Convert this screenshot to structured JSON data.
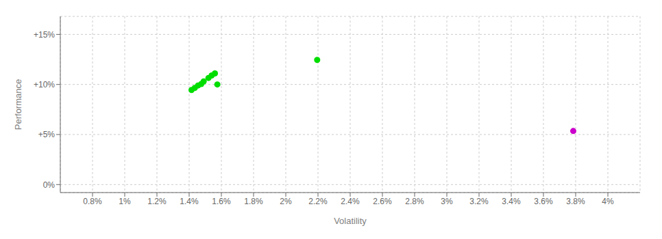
{
  "chart_data": {
    "type": "scatter",
    "xlabel": "Volatility",
    "ylabel": "Performance",
    "xlim": [
      0.006,
      0.042
    ],
    "ylim": [
      -0.008,
      0.168
    ],
    "xticks": [
      {
        "value": 0.008,
        "label": "0.8%"
      },
      {
        "value": 0.01,
        "label": "1%"
      },
      {
        "value": 0.012,
        "label": "1.2%"
      },
      {
        "value": 0.014,
        "label": "1.4%"
      },
      {
        "value": 0.016,
        "label": "1.6%"
      },
      {
        "value": 0.018,
        "label": "1.8%"
      },
      {
        "value": 0.02,
        "label": "2%"
      },
      {
        "value": 0.022,
        "label": "2.2%"
      },
      {
        "value": 0.024,
        "label": "2.4%"
      },
      {
        "value": 0.026,
        "label": "2.6%"
      },
      {
        "value": 0.028,
        "label": "2.8%"
      },
      {
        "value": 0.03,
        "label": "3%"
      },
      {
        "value": 0.032,
        "label": "3.2%"
      },
      {
        "value": 0.034,
        "label": "3.4%"
      },
      {
        "value": 0.036,
        "label": "3.6%"
      },
      {
        "value": 0.038,
        "label": "3.8%"
      },
      {
        "value": 0.04,
        "label": "4%"
      }
    ],
    "yticks": [
      {
        "value": 0.0,
        "label": "0%"
      },
      {
        "value": 0.05,
        "label": "+5%"
      },
      {
        "value": 0.1,
        "label": "+10%"
      },
      {
        "value": 0.15,
        "label": "+15%"
      }
    ],
    "grid": true,
    "series": [
      {
        "color": "#00dd00",
        "x": [
          0.01415,
          0.01435,
          0.01455,
          0.01475,
          0.0149,
          0.0152,
          0.0154,
          0.0156,
          0.01575,
          0.02195
        ],
        "values": [
          0.0945,
          0.0965,
          0.099,
          0.1005,
          0.103,
          0.1065,
          0.109,
          0.111,
          0.1,
          0.1245
        ]
      },
      {
        "color": "#cc00cc",
        "x": [
          0.03785
        ],
        "values": [
          0.0535
        ]
      }
    ]
  }
}
